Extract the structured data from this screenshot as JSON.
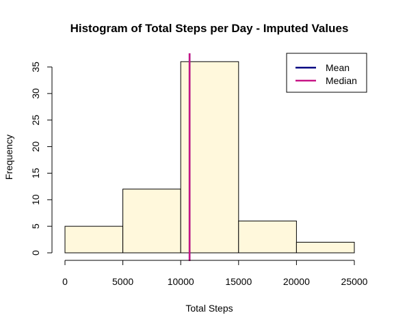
{
  "chart_data": {
    "type": "bar",
    "title": "Histogram of Total Steps per Day - Imputed Values",
    "xlabel": "Total Steps",
    "ylabel": "Frequency",
    "bins": [
      {
        "from": 0,
        "to": 5000,
        "count": 5
      },
      {
        "from": 5000,
        "to": 10000,
        "count": 12
      },
      {
        "from": 10000,
        "to": 15000,
        "count": 36
      },
      {
        "from": 15000,
        "to": 20000,
        "count": 6
      },
      {
        "from": 20000,
        "to": 25000,
        "count": 2
      }
    ],
    "xlim": [
      0,
      25000
    ],
    "ylim": [
      0,
      35
    ],
    "x_ticks": [
      0,
      5000,
      10000,
      15000,
      20000,
      25000
    ],
    "y_ticks": [
      0,
      5,
      10,
      15,
      20,
      25,
      30,
      35
    ],
    "bar_fill": "#FFF8DC",
    "bar_stroke": "#000000",
    "reference_lines": [
      {
        "name": "Mean",
        "x": 10766,
        "color": "#000080"
      },
      {
        "name": "Median",
        "x": 10766,
        "color": "#C71585"
      }
    ],
    "legend": {
      "position": "top-right",
      "entries": [
        {
          "label": "Mean",
          "color": "#000080"
        },
        {
          "label": "Median",
          "color": "#C71585"
        }
      ]
    },
    "grid": false
  }
}
